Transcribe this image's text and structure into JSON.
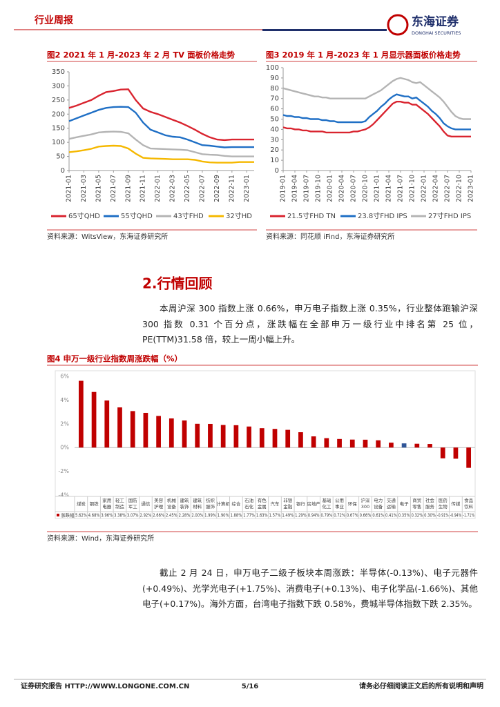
{
  "header": {
    "title": "行业周报",
    "logo_cn": "东海证券",
    "logo_en": "DONGHAI SECURITIES"
  },
  "chart_data": [
    {
      "type": "line",
      "title": "图2  2021 年 1 月-2023 年 2 月 TV 面板价格走势",
      "source": "资料来源：WitsView，东海证券研究所",
      "x": [
        "2021-01",
        null,
        "2021-03",
        null,
        "2021-05",
        null,
        "2021-07",
        null,
        "2021-09",
        null,
        "2021-11",
        null,
        "2022-01",
        null,
        "2022-03",
        null,
        "2022-05",
        null,
        "2022-07",
        null,
        "2022-09",
        null,
        "2022-11",
        null,
        "2023-01",
        null
      ],
      "ylim": [
        0,
        350
      ],
      "yticks": [
        0,
        50,
        100,
        150,
        200,
        250,
        300,
        350
      ],
      "series": [
        {
          "name": "65寸QHD",
          "color": "#d9242f",
          "values": [
            222,
            230,
            240,
            250,
            265,
            278,
            282,
            287,
            288,
            250,
            220,
            208,
            200,
            190,
            180,
            170,
            158,
            145,
            130,
            118,
            110,
            108,
            110,
            110,
            110,
            110
          ]
        },
        {
          "name": "55寸QHD",
          "color": "#1f6fc5",
          "values": [
            175,
            185,
            195,
            205,
            215,
            222,
            225,
            226,
            225,
            205,
            170,
            145,
            135,
            125,
            120,
            118,
            110,
            100,
            90,
            88,
            85,
            82,
            83,
            83,
            83,
            83
          ]
        },
        {
          "name": "43寸FHD",
          "color": "#b4b4b4",
          "values": [
            112,
            118,
            123,
            128,
            135,
            137,
            138,
            137,
            132,
            110,
            90,
            78,
            77,
            76,
            75,
            74,
            72,
            65,
            58,
            56,
            55,
            52,
            50,
            50,
            50,
            50
          ]
        },
        {
          "name": "32寸HD",
          "color": "#f5b800",
          "values": [
            65,
            68,
            72,
            77,
            85,
            87,
            88,
            87,
            78,
            60,
            45,
            43,
            42,
            41,
            40,
            40,
            40,
            38,
            32,
            29,
            28,
            28,
            28,
            30,
            30,
            30
          ]
        }
      ]
    },
    {
      "type": "line",
      "title": "图3  2019 年 1 月-2023 年 1 月显示器面板价格走势",
      "source": "资料来源：同花顺 iFind，东海证券研究所",
      "x": [
        "2019-01",
        null,
        null,
        "2019-04",
        null,
        null,
        "2019-07",
        null,
        null,
        "2019-10",
        null,
        null,
        "2020-01",
        null,
        null,
        "2020-04",
        null,
        null,
        "2020-07",
        null,
        null,
        "2020-10",
        null,
        null,
        "2021-01",
        null,
        null,
        "2021-04",
        null,
        null,
        "2021-07",
        null,
        null,
        "2021-10",
        null,
        null,
        "2022-01",
        null,
        null,
        "2022-04",
        null,
        null,
        "2022-07",
        null,
        null,
        "2022-10",
        null,
        null,
        "2023-01"
      ],
      "ylim": [
        0,
        100
      ],
      "yticks": [
        0,
        10,
        20,
        30,
        40,
        50,
        60,
        70,
        80,
        90,
        100
      ],
      "series": [
        {
          "name": "21.5寸FHD TN",
          "color": "#d9242f",
          "values": [
            42,
            41,
            41,
            40,
            40,
            39,
            39,
            38,
            38,
            38,
            38,
            37,
            37,
            37,
            37,
            37,
            37,
            37,
            38,
            38,
            39,
            40,
            42,
            45,
            49,
            53,
            57,
            61,
            65,
            67,
            67,
            66,
            66,
            64,
            64,
            61,
            58,
            55,
            51,
            47,
            43,
            38,
            34,
            33,
            33,
            33,
            33,
            33,
            33
          ]
        },
        {
          "name": "23.8寸FHD IPS",
          "color": "#1f6fc5",
          "values": [
            54,
            53,
            53,
            52,
            52,
            51,
            51,
            50,
            50,
            50,
            49,
            49,
            48,
            48,
            47,
            47,
            47,
            47,
            47,
            47,
            47,
            48,
            52,
            55,
            58,
            62,
            65,
            69,
            72,
            74,
            73,
            72,
            72,
            70,
            71,
            68,
            65,
            62,
            58,
            55,
            51,
            46,
            43,
            41,
            40,
            40,
            40,
            40,
            40
          ]
        },
        {
          "name": "27寸FHD IPS",
          "color": "#b4b4b4",
          "values": [
            80,
            79,
            78,
            77,
            76,
            75,
            74,
            73,
            72,
            72,
            71,
            71,
            70,
            70,
            70,
            70,
            70,
            70,
            70,
            70,
            70,
            70,
            72,
            74,
            76,
            78,
            81,
            84,
            87,
            89,
            90,
            89,
            88,
            86,
            85,
            86,
            83,
            80,
            77,
            74,
            71,
            67,
            62,
            57,
            53,
            51,
            50,
            50,
            50
          ]
        }
      ]
    },
    {
      "type": "bar",
      "title": "图4  申万一级行业指数周涨跌幅（%）",
      "source": "资料来源：Wind，东海证券研究所",
      "categories": [
        "煤炭",
        "钢铁",
        "家用电器",
        "轻工制造",
        "国防军工",
        "通信",
        "美容护理",
        "机械设备",
        "建筑装饰",
        "建筑材料",
        "纺织服饰",
        "计算机",
        "综合",
        "石油石化",
        "有色金属",
        "汽车",
        "非银金融",
        "银行",
        "房地产",
        "基础化工",
        "公用事业",
        "环保",
        "沪深300",
        "电力设备",
        "交通运输",
        "电子",
        "商贸零售",
        "社会服务",
        "医药生物",
        "传媒",
        "食品饮料"
      ],
      "ylim": [
        -4,
        6
      ],
      "yticks": [
        {
          "value": -4,
          "label": "-4%"
        },
        {
          "value": -2,
          "label": "-2%"
        },
        {
          "value": 0,
          "label": "0%"
        },
        {
          "value": 2,
          "label": "2%"
        },
        {
          "value": 4,
          "label": "4%"
        },
        {
          "value": 6,
          "label": "6%"
        }
      ],
      "highlight_category": "电子",
      "highlight_color": "#2f5597",
      "series": [
        {
          "name": "涨跌幅",
          "color": "#c00000",
          "values": [
            5.62,
            4.68,
            3.96,
            3.38,
            3.07,
            2.92,
            2.66,
            2.45,
            2.28,
            2.0,
            1.99,
            1.9,
            1.88,
            1.77,
            1.63,
            1.57,
            1.49,
            1.29,
            0.94,
            0.79,
            0.72,
            0.67,
            0.66,
            0.61,
            0.41,
            0.35,
            0.32,
            0.3,
            -0.91,
            -0.94,
            -1.71
          ],
          "value_labels": [
            "5.62%",
            "4.68%",
            "3.96%",
            "3.38%",
            "3.07%",
            "2.92%",
            "2.66%",
            "2.45%",
            "2.28%",
            "2.00%",
            "1.99%",
            "1.90%",
            "1.88%",
            "1.77%",
            "1.63%",
            "1.57%",
            "1.49%",
            "1.29%",
            "0.94%",
            "0.79%",
            "0.72%",
            "0.67%",
            "0.66%",
            "0.61%",
            "0.41%",
            "0.35%",
            "0.32%",
            "0.30%",
            "-0.91%",
            "-0.94%",
            "-1.71%"
          ]
        }
      ]
    }
  ],
  "section": {
    "heading": "2.行情回顾",
    "paragraphs": [
      "本周沪深 300 指数上涨 0.66%，申万电子指数上涨 0.35%，行业整体跑输沪深 300 指数 0.31 个百分点，涨跌幅在全部申万一级行业中排名第 25 位，PE(TTM)31.58 倍，较上一周小幅上升。",
      "截止 2 月 24 日，申万电子二级子板块本周涨跌：半导体(-0.13%)、电子元器件(+0.49%)、光学光电子(+1.75%)、消费电子(+0.13%)、电子化学品(-1.66%)、其他电子(+0.17%)。海外方面，台湾电子指数下跌 0.58%，费城半导体指数下跌 2.35%。"
    ]
  },
  "footer": {
    "left": "证券研究报告    HTTP://WWW.LONGONE.COM.CN",
    "page": "5/16",
    "right": "请务必仔细阅读正文后的所有说明和声明"
  }
}
